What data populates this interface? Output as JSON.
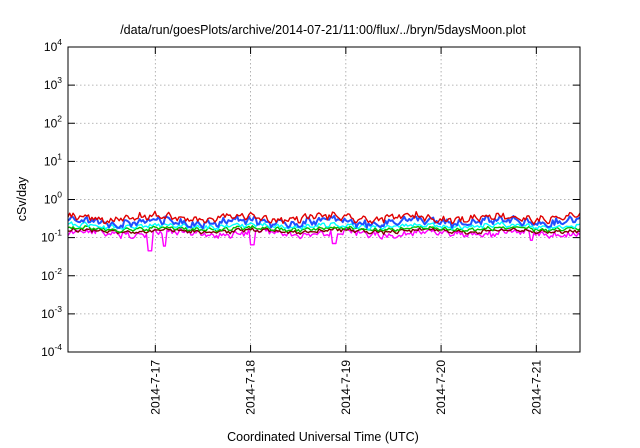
{
  "chart_data": {
    "type": "line",
    "title": "/data/run/goesPlots/archive/2014-07-21/11:00/flux/../bryn/5daysMoon.plot",
    "xlabel": "Coordinated Universal Time (UTC)",
    "ylabel": "cSv/day",
    "yscale": "log",
    "ylim": [
      0.0001,
      10000
    ],
    "xlim": [
      "2014-07-16 02:00",
      "2014-07-21 11:00"
    ],
    "grid": true,
    "x_ticks": [
      "2014-7-17",
      "2014-7-18",
      "2014-7-19",
      "2014-7-20",
      "2014-7-21"
    ],
    "y_ticks": [
      {
        "value": 0.0001,
        "base": "10",
        "exp": "-4"
      },
      {
        "value": 0.001,
        "base": "10",
        "exp": "-3"
      },
      {
        "value": 0.01,
        "base": "10",
        "exp": "-2"
      },
      {
        "value": 0.1,
        "base": "10",
        "exp": "-1"
      },
      {
        "value": 1,
        "base": "10",
        "exp": "0"
      },
      {
        "value": 10,
        "base": "10",
        "exp": "1"
      },
      {
        "value": 100,
        "base": "10",
        "exp": "2"
      },
      {
        "value": 1000,
        "base": "10",
        "exp": "3"
      },
      {
        "value": 10000,
        "base": "10",
        "exp": "4"
      }
    ],
    "series": [
      {
        "color": "#ff00ff",
        "base": 0.13,
        "spread": 0.26,
        "dips": [
          [
            0.16,
            0.045
          ],
          [
            0.188,
            0.06
          ],
          [
            0.36,
            0.065
          ],
          [
            0.52,
            0.07
          ],
          [
            0.905,
            0.085
          ]
        ]
      },
      {
        "color": "#800000",
        "base": 0.15,
        "spread": 0.15,
        "dips": []
      },
      {
        "color": "#00c000",
        "base": 0.17,
        "spread": 0.15,
        "dips": []
      },
      {
        "color": "#00ffff",
        "base": 0.2,
        "spread": 0.18,
        "dips": []
      },
      {
        "color": "#2050ff",
        "base": 0.26,
        "spread": 0.3,
        "dips": []
      },
      {
        "color": "#e00000",
        "base": 0.33,
        "spread": 0.28,
        "dips": []
      }
    ]
  }
}
